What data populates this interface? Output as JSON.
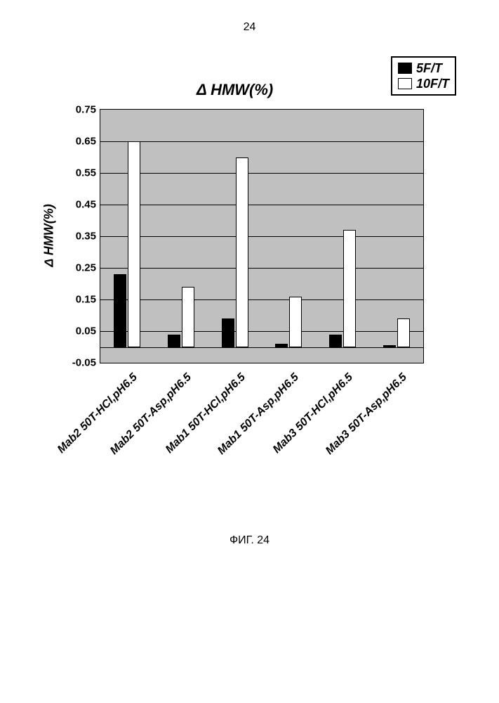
{
  "page_number": "24",
  "chart": {
    "type": "bar",
    "title": "Δ HMW(%)",
    "title_fontsize": 22,
    "ylabel": "Δ HMW(%)",
    "categories": [
      "Mab2 50T-HCl,pH6.5",
      "Mab2 50T-Asp,pH6.5",
      "Mab1 50T-HCl,pH6.5",
      "Mab1 50T-Asp,pH6.5",
      "Mab3 50T-HCl,pH6.5",
      "Mab3 50T-Asp,pH6.5"
    ],
    "series": [
      {
        "name": "5F/T",
        "color": "#000000",
        "values": [
          0.23,
          0.04,
          0.09,
          0.01,
          0.04,
          0.005
        ]
      },
      {
        "name": "10F/T",
        "color": "#ffffff",
        "values": [
          0.65,
          0.19,
          0.6,
          0.16,
          0.37,
          0.09
        ]
      }
    ],
    "ymin": -0.05,
    "ymax": 0.75,
    "ytick_step": 0.1,
    "yticks": [
      "-0.05",
      "0.05",
      "0.15",
      "0.25",
      "0.35",
      "0.45",
      "0.55",
      "0.65",
      "0.75"
    ],
    "plot_bg": "#c0c0c0",
    "grid_color": "#000000",
    "bar_border": "#000000",
    "legend_border": "#000000"
  },
  "figure_caption": "ФИГ. 24"
}
